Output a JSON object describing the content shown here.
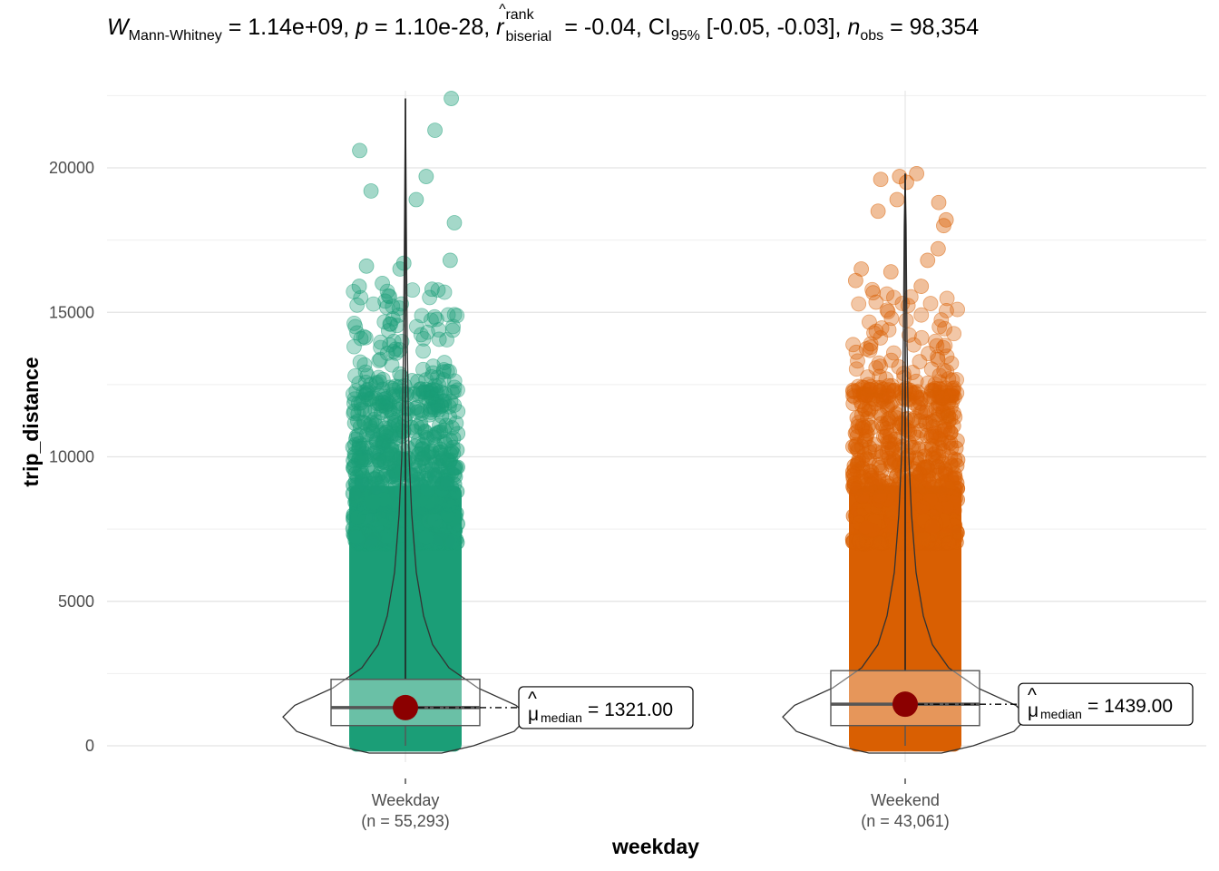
{
  "subtitle": {
    "w_symbol": "W",
    "w_sub": "Mann-Whitney",
    "w_value": " = 1.14e+09, ",
    "p_symbol": "p",
    "p_value": " = 1.10e-28, ",
    "r_symbol": "r",
    "r_sup": "rank",
    "r_sub": "biserial",
    "r_value": " = -0.04, CI",
    "ci_sub": "95%",
    "ci_value": " [-0.05, -0.03], ",
    "n_symbol": "n",
    "n_sub": "obs",
    "n_value": " = 98,354"
  },
  "chart_data": {
    "type": "violin-box-scatter",
    "xlabel": "weekday",
    "ylabel": "trip_distance",
    "ylim": [
      -200,
      23500
    ],
    "yticks": [
      0,
      5000,
      10000,
      15000,
      20000
    ],
    "grid": true,
    "groups": [
      {
        "name": "Weekday",
        "n_label": "(n = 55,293)",
        "color": "#1b9e77",
        "median": 1321.0,
        "median_label": "1321.00",
        "q1": 700,
        "q3": 2300,
        "whisker_low": 0,
        "whisker_high": 22400,
        "max": 22400,
        "outliers": [
          22400,
          21300,
          20600,
          19700,
          19200,
          18900,
          18100,
          16800,
          16700,
          16600,
          16500,
          16000,
          15900,
          15800
        ]
      },
      {
        "name": "Weekend",
        "n_label": "(n = 43,061)",
        "color": "#d95f02",
        "median": 1439.0,
        "median_label": "1439.00",
        "q1": 700,
        "q3": 2600,
        "whisker_low": 0,
        "whisker_high": 19800,
        "max": 19800,
        "outliers": [
          19800,
          19700,
          19600,
          19500,
          18900,
          18800,
          18500,
          18200,
          18000,
          17200,
          16800,
          16500,
          16400,
          16100,
          15900
        ]
      }
    ],
    "label_symbol": "μ",
    "label_sub": "median",
    "center_color": "#8b0000"
  }
}
